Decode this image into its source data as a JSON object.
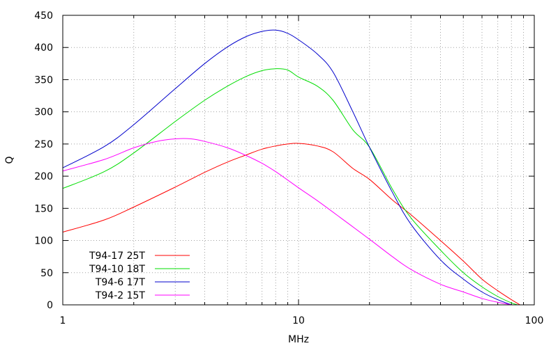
{
  "chart_data": {
    "type": "line",
    "xscale": "log",
    "xlabel": "MHz",
    "ylabel": "Q",
    "xlim": [
      1,
      100
    ],
    "ylim": [
      0,
      450
    ],
    "xticks": [
      1,
      10,
      100
    ],
    "xtick_labels": [
      "1",
      "10",
      "100"
    ],
    "yticks": [
      0,
      50,
      100,
      150,
      200,
      250,
      300,
      350,
      400,
      450
    ],
    "ytick_labels": [
      "0",
      "50",
      "100",
      "150",
      "200",
      "250",
      "300",
      "350",
      "400",
      "450"
    ],
    "grid": true,
    "legend_position": "bottom-left",
    "series": [
      {
        "name": "T94-17 25T",
        "color": "#ff0000",
        "x": [
          1,
          1.5,
          2,
          3,
          4,
          5,
          6,
          7,
          8,
          9,
          10,
          12,
          14,
          17,
          20,
          25,
          30,
          40,
          50,
          60,
          70,
          80,
          87
        ],
        "y": [
          113,
          132,
          152,
          183,
          206,
          222,
          233,
          242,
          247,
          250,
          251,
          247,
          238,
          212,
          195,
          163,
          140,
          100,
          68,
          40,
          22,
          8,
          0
        ]
      },
      {
        "name": "T94-10 18T",
        "color": "#00dd00",
        "x": [
          1,
          1.5,
          2,
          3,
          4,
          5,
          6,
          7,
          8,
          9,
          10,
          12,
          14,
          17,
          20,
          25,
          30,
          40,
          50,
          60,
          70,
          80,
          85
        ],
        "y": [
          181,
          207,
          236,
          285,
          318,
          340,
          355,
          364,
          367,
          365,
          354,
          340,
          318,
          272,
          245,
          180,
          135,
          85,
          50,
          28,
          13,
          3,
          0
        ]
      },
      {
        "name": "T94-6 17T",
        "color": "#0000cc",
        "x": [
          1,
          1.5,
          2,
          3,
          4,
          5,
          6,
          7,
          8,
          9,
          10,
          12,
          14,
          17,
          20,
          25,
          30,
          40,
          50,
          60,
          70,
          80
        ],
        "y": [
          213,
          246,
          280,
          336,
          375,
          401,
          417,
          425,
          427,
          422,
          412,
          390,
          362,
          300,
          245,
          175,
          125,
          70,
          40,
          20,
          8,
          0
        ]
      },
      {
        "name": "T94-2 15T",
        "color": "#ff00ff",
        "x": [
          1,
          1.5,
          2,
          2.5,
          3,
          3.5,
          4,
          5,
          6,
          7,
          8,
          10,
          12,
          15,
          20,
          25,
          30,
          40,
          50,
          60,
          70,
          80
        ],
        "y": [
          208,
          226,
          244,
          254,
          258,
          258,
          254,
          244,
          232,
          220,
          207,
          182,
          162,
          136,
          102,
          75,
          55,
          32,
          20,
          10,
          4,
          0
        ]
      }
    ]
  }
}
